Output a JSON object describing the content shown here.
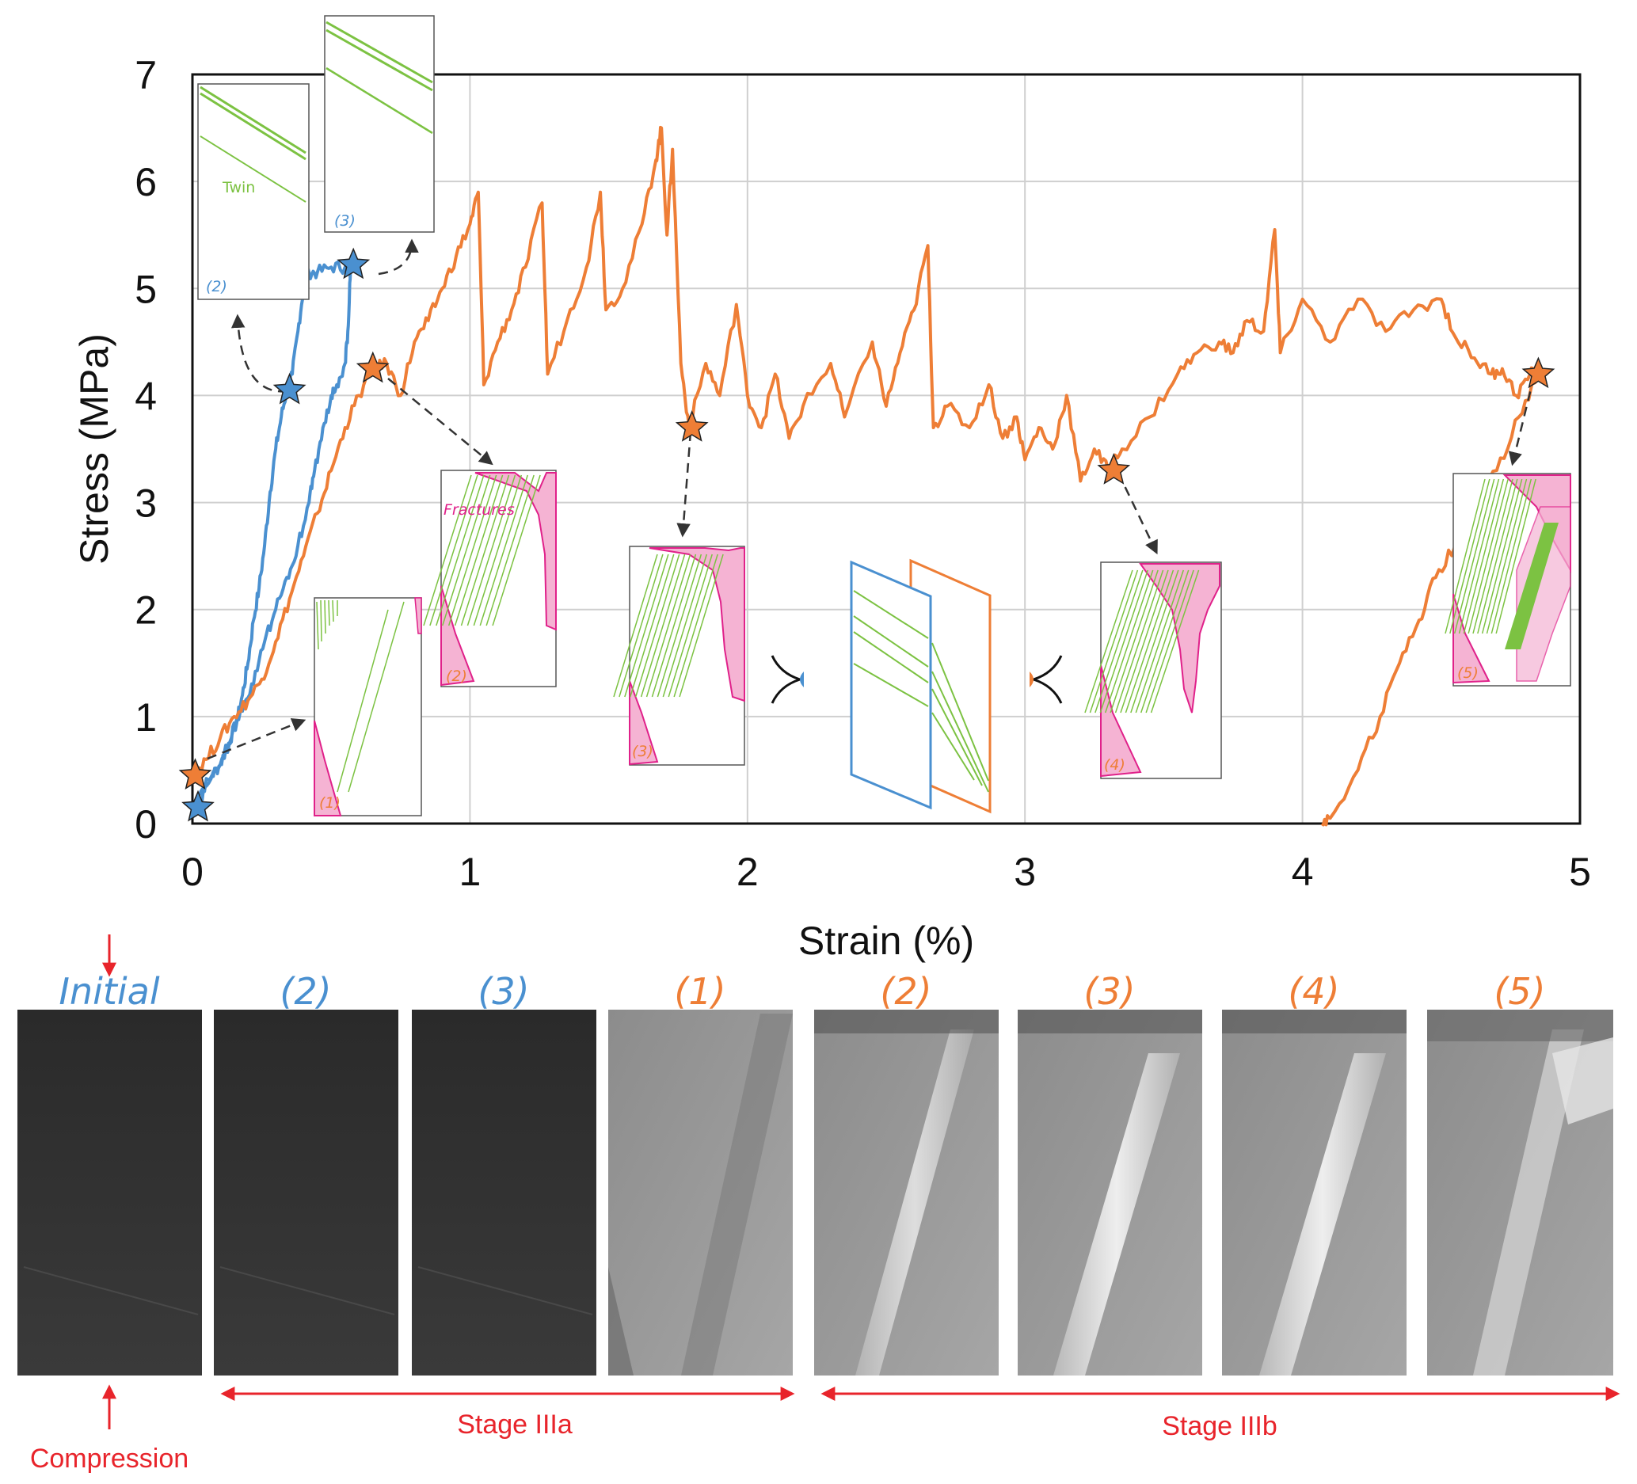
{
  "chart_data": {
    "type": "line",
    "title": "",
    "xlabel": "Strain (%)",
    "ylabel": "Stress (MPa)",
    "xlim": [
      0,
      5
    ],
    "ylim": [
      0,
      7
    ],
    "grid": true,
    "x_ticks": [
      "0",
      "1",
      "2",
      "3",
      "4",
      "5"
    ],
    "y_ticks": [
      "0",
      "1",
      "2",
      "3",
      "4",
      "5",
      "6",
      "7"
    ],
    "series": [
      {
        "color": "#4a90d0",
        "points": [
          [
            0.0,
            0.15
          ],
          [
            0.03,
            0.3
          ],
          [
            0.07,
            0.45
          ],
          [
            0.1,
            0.55
          ],
          [
            0.13,
            0.75
          ],
          [
            0.16,
            0.95
          ],
          [
            0.18,
            1.2
          ],
          [
            0.2,
            1.5
          ],
          [
            0.22,
            1.9
          ],
          [
            0.24,
            2.2
          ],
          [
            0.26,
            2.6
          ],
          [
            0.28,
            3.1
          ],
          [
            0.3,
            3.5
          ],
          [
            0.32,
            3.8
          ],
          [
            0.34,
            4.05
          ],
          [
            0.36,
            4.2
          ],
          [
            0.38,
            4.6
          ],
          [
            0.4,
            5.0
          ],
          [
            0.42,
            5.15
          ],
          [
            0.45,
            5.15
          ],
          [
            0.5,
            5.2
          ],
          [
            0.55,
            5.2
          ],
          [
            0.57,
            5.22
          ],
          [
            0.56,
            4.6
          ],
          [
            0.55,
            4.3
          ],
          [
            0.52,
            4.1
          ],
          [
            0.5,
            4.0
          ],
          [
            0.47,
            3.7
          ],
          [
            0.44,
            3.3
          ],
          [
            0.42,
            3.0
          ],
          [
            0.38,
            2.6
          ],
          [
            0.34,
            2.3
          ],
          [
            0.3,
            2.0
          ],
          [
            0.26,
            1.7
          ],
          [
            0.22,
            1.3
          ],
          [
            0.18,
            1.05
          ],
          [
            0.14,
            0.8
          ],
          [
            0.1,
            0.55
          ],
          [
            0.05,
            0.35
          ],
          [
            0.02,
            0.2
          ]
        ]
      },
      {
        "color": "#ee7e36",
        "points": [
          [
            0.0,
            0.45
          ],
          [
            0.05,
            0.6
          ],
          [
            0.1,
            0.8
          ],
          [
            0.15,
            1.0
          ],
          [
            0.2,
            1.15
          ],
          [
            0.25,
            1.35
          ],
          [
            0.3,
            1.7
          ],
          [
            0.35,
            2.1
          ],
          [
            0.4,
            2.5
          ],
          [
            0.45,
            2.9
          ],
          [
            0.5,
            3.3
          ],
          [
            0.55,
            3.7
          ],
          [
            0.6,
            4.0
          ],
          [
            0.65,
            4.25
          ],
          [
            0.7,
            4.3
          ],
          [
            0.75,
            4.0
          ],
          [
            0.8,
            4.5
          ],
          [
            0.85,
            4.7
          ],
          [
            0.9,
            5.0
          ],
          [
            0.95,
            5.3
          ],
          [
            1.0,
            5.6
          ],
          [
            1.03,
            5.9
          ],
          [
            1.05,
            4.1
          ],
          [
            1.1,
            4.5
          ],
          [
            1.15,
            4.8
          ],
          [
            1.2,
            5.2
          ],
          [
            1.26,
            5.8
          ],
          [
            1.28,
            4.2
          ],
          [
            1.35,
            4.7
          ],
          [
            1.42,
            5.2
          ],
          [
            1.47,
            5.9
          ],
          [
            1.49,
            4.8
          ],
          [
            1.55,
            5.0
          ],
          [
            1.62,
            5.6
          ],
          [
            1.67,
            6.2
          ],
          [
            1.69,
            6.5
          ],
          [
            1.71,
            5.5
          ],
          [
            1.73,
            6.3
          ],
          [
            1.76,
            4.3
          ],
          [
            1.79,
            3.7
          ],
          [
            1.85,
            4.3
          ],
          [
            1.9,
            4.0
          ],
          [
            1.96,
            4.85
          ],
          [
            2.0,
            4.0
          ],
          [
            2.05,
            3.7
          ],
          [
            2.1,
            4.2
          ],
          [
            2.15,
            3.6
          ],
          [
            2.2,
            3.9
          ],
          [
            2.3,
            4.3
          ],
          [
            2.35,
            3.8
          ],
          [
            2.45,
            4.5
          ],
          [
            2.5,
            3.9
          ],
          [
            2.55,
            4.4
          ],
          [
            2.6,
            4.8
          ],
          [
            2.65,
            5.4
          ],
          [
            2.67,
            3.7
          ],
          [
            2.72,
            3.9
          ],
          [
            2.8,
            3.7
          ],
          [
            2.87,
            4.1
          ],
          [
            2.92,
            3.6
          ],
          [
            2.97,
            3.8
          ],
          [
            3.0,
            3.4
          ],
          [
            3.05,
            3.7
          ],
          [
            3.1,
            3.5
          ],
          [
            3.15,
            4.0
          ],
          [
            3.2,
            3.2
          ],
          [
            3.25,
            3.5
          ],
          [
            3.3,
            3.3
          ],
          [
            3.35,
            3.5
          ],
          [
            3.45,
            3.8
          ],
          [
            3.55,
            4.2
          ],
          [
            3.62,
            4.4
          ],
          [
            3.7,
            4.5
          ],
          [
            3.75,
            4.4
          ],
          [
            3.8,
            4.7
          ],
          [
            3.86,
            4.6
          ],
          [
            3.9,
            5.55
          ],
          [
            3.92,
            4.4
          ],
          [
            4.0,
            4.9
          ],
          [
            4.1,
            4.5
          ],
          [
            4.2,
            4.9
          ],
          [
            4.3,
            4.6
          ],
          [
            4.4,
            4.8
          ],
          [
            4.5,
            4.9
          ],
          [
            4.55,
            4.55
          ],
          [
            4.62,
            4.35
          ],
          [
            4.68,
            4.2
          ],
          [
            4.72,
            4.25
          ],
          [
            4.77,
            4.0
          ],
          [
            4.82,
            4.2
          ],
          [
            4.85,
            4.2
          ],
          [
            4.78,
            3.8
          ],
          [
            4.7,
            3.3
          ],
          [
            4.62,
            2.9
          ],
          [
            4.55,
            2.6
          ],
          [
            4.48,
            2.3
          ],
          [
            4.42,
            1.9
          ],
          [
            4.35,
            1.5
          ],
          [
            4.28,
            1.0
          ],
          [
            4.2,
            0.5
          ],
          [
            4.1,
            0.05
          ],
          [
            4.07,
            0.0
          ]
        ]
      }
    ],
    "markers": [
      {
        "series": 0,
        "x": 0.02,
        "y": 0.15
      },
      {
        "series": 0,
        "x": 0.35,
        "y": 4.05
      },
      {
        "series": 0,
        "x": 0.58,
        "y": 5.22
      },
      {
        "series": 1,
        "x": 0.01,
        "y": 0.45
      },
      {
        "series": 1,
        "x": 0.65,
        "y": 4.25
      },
      {
        "series": 1,
        "x": 1.8,
        "y": 3.7
      },
      {
        "series": 1,
        "x": 3.32,
        "y": 3.3
      },
      {
        "series": 1,
        "x": 4.85,
        "y": 4.2
      }
    ],
    "annotations": {
      "twin": "Twin",
      "fractures": "Fractures",
      "inset_blue_2": "(2)",
      "inset_blue_3": "(3)",
      "inset_orange_1": "(1)",
      "inset_orange_2": "(2)",
      "inset_orange_3": "(3)",
      "inset_orange_4": "(4)",
      "inset_orange_5": "(5)"
    }
  },
  "photos": {
    "labels": [
      "Initial",
      "(2)",
      "(3)",
      "(1)",
      "(2)",
      "(3)",
      "(4)",
      "(5)"
    ],
    "label_colors": [
      "#4a90d0",
      "#4a90d0",
      "#4a90d0",
      "#ee7e36",
      "#ee7e36",
      "#ee7e36",
      "#ee7e36",
      "#ee7e36"
    ],
    "stage_a": "Stage IIIa",
    "stage_b": "Stage IIIb",
    "compression": "Compression"
  },
  "colors": {
    "blue": "#4a90d0",
    "orange": "#ee7e36",
    "twin_green": "#7cc242",
    "fracture_pink": "#f5b3d3",
    "red": "#e8242b"
  }
}
